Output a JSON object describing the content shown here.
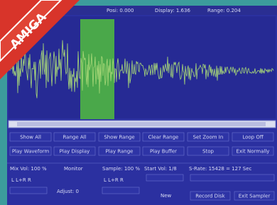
{
  "banner": "AMIGA",
  "status": [
    "Posi: 0.000",
    "Display: 1.636",
    "Range: 0.204"
  ],
  "buttons": [
    [
      "Show All",
      "Range All",
      "Show Range",
      "Clear Range",
      "Set Zoom In",
      "Loop Off"
    ],
    [
      "Play Waveform",
      "Play Display",
      "Play Range",
      "Play Buffer",
      "Stop",
      "Exit Normally"
    ]
  ],
  "controls": {
    "mix_vol": "Mix Vol: 100 %",
    "monitor": "Monitor",
    "sample": "Sample: 100 %",
    "start_vol": "Start Vol: 1/8",
    "s_rate": "S-Rate: 15428 = 127 Sec",
    "channel_left": "L  L+R  R",
    "channel_right": "L  L+R  R",
    "adjust": "Adjust: 0",
    "new": "New",
    "record_disk": "Record Disk",
    "exit_sampler": "Exit Sampler"
  }
}
